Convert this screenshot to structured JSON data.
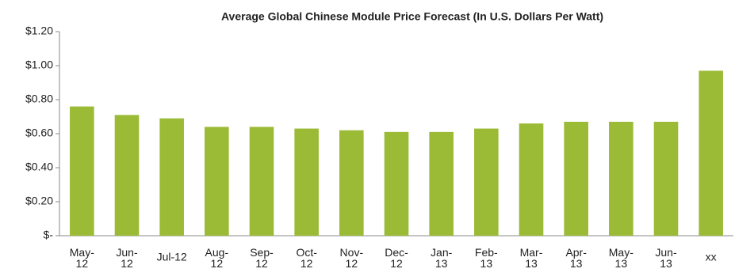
{
  "chart_data": {
    "type": "bar",
    "title": "Average Global Chinese Module Price Forecast (In U.S. Dollars Per Watt)",
    "categories": [
      "May-12",
      "Jun-12",
      "Jul-12",
      "Aug-12",
      "Sep-12",
      "Oct-12",
      "Nov-12",
      "Dec-12",
      "Jan-13",
      "Feb-13",
      "Mar-13",
      "Apr-13",
      "May-13",
      "Jun-13",
      "xx"
    ],
    "values": [
      0.76,
      0.71,
      0.69,
      0.64,
      0.64,
      0.63,
      0.62,
      0.61,
      0.61,
      0.63,
      0.66,
      0.67,
      0.67,
      0.67,
      0.97
    ],
    "color": "#9bbb36",
    "ylim": [
      0,
      1.2
    ],
    "yticks": [
      {
        "value": 0,
        "label": "$-"
      },
      {
        "value": 0.2,
        "label": "$0.20"
      },
      {
        "value": 0.4,
        "label": "$0.40"
      },
      {
        "value": 0.6,
        "label": "$0.60"
      },
      {
        "value": 0.8,
        "label": "$0.80"
      },
      {
        "value": 1.0,
        "label": "$1.00"
      },
      {
        "value": 1.2,
        "label": "$1.20"
      }
    ],
    "grid": false
  }
}
